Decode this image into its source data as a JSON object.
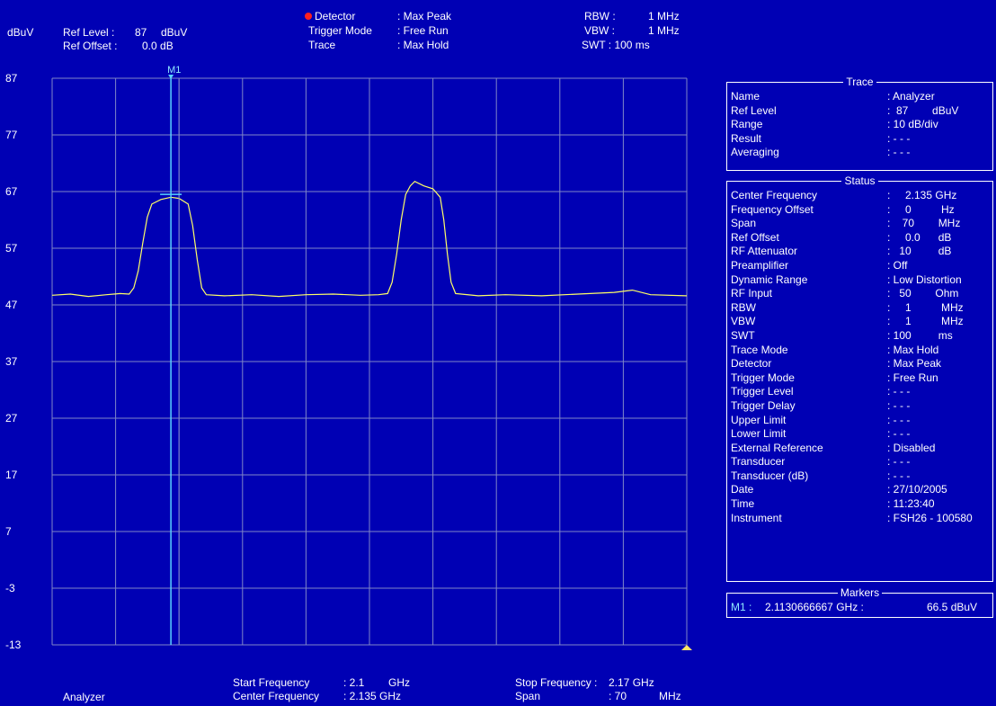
{
  "header": {
    "unit": "dBuV",
    "ref_level_label": "Ref Level :",
    "ref_level_value": "87",
    "ref_level_unit": "dBuV",
    "ref_offset_label": "Ref Offset :",
    "ref_offset_value": "0.0 dB",
    "detector_label": "Detector",
    "detector_value": ": Max Peak",
    "trigger_label": "Trigger Mode",
    "trigger_value": ": Free Run",
    "trace_label": "Trace",
    "trace_value": ": Max Hold",
    "rbw_label": "RBW :",
    "rbw_value": "1 MHz",
    "vbw_label": "VBW :",
    "vbw_value": "1 MHz",
    "swt_label": "SWT : 100 ms"
  },
  "marker_label": "M1",
  "footer": {
    "start_label": "Start Frequency",
    "start_value": ": 2.1",
    "start_unit": "GHz",
    "center_label": "Center Frequency",
    "center_value": ": 2.135 GHz",
    "stop_label": "Stop Frequency :",
    "stop_value": "2.17 GHz",
    "span_label": "Span",
    "span_value": ": 70",
    "span_unit": "MHz",
    "mode_label": "Analyzer"
  },
  "colors": {
    "background": "#0000b4",
    "grid": "#7f86c8",
    "trace": "#ffff66",
    "marker": "#5ad2ff",
    "marker_text": "#8fe8ff",
    "detector_dot": "#ff2020",
    "stop_triangle": "#ffe566"
  },
  "chart_data": {
    "type": "line",
    "yticks": [
      "87",
      "77",
      "67",
      "57",
      "47",
      "37",
      "27",
      "17",
      "7",
      "-3",
      "-13"
    ],
    "ylim": [
      -13,
      87
    ],
    "xlim": [
      2.1,
      2.17
    ],
    "x_unit": "GHz",
    "y_unit": "dBuV",
    "grid": true,
    "series": [
      {
        "points": [
          [
            2.1,
            48.7
          ],
          [
            2.102,
            48.9
          ],
          [
            2.104,
            48.5
          ],
          [
            2.106,
            48.8
          ],
          [
            2.1075,
            49.0
          ],
          [
            2.1085,
            48.9
          ],
          [
            2.109,
            50.0
          ],
          [
            2.1095,
            53.0
          ],
          [
            2.11,
            58.0
          ],
          [
            2.1105,
            62.5
          ],
          [
            2.111,
            64.8
          ],
          [
            2.112,
            65.6
          ],
          [
            2.1131,
            66.0
          ],
          [
            2.114,
            65.8
          ],
          [
            2.115,
            64.8
          ],
          [
            2.1155,
            61.0
          ],
          [
            2.116,
            55.0
          ],
          [
            2.1165,
            50.0
          ],
          [
            2.117,
            48.8
          ],
          [
            2.119,
            48.6
          ],
          [
            2.122,
            48.8
          ],
          [
            2.125,
            48.5
          ],
          [
            2.128,
            48.8
          ],
          [
            2.131,
            48.9
          ],
          [
            2.134,
            48.7
          ],
          [
            2.136,
            48.8
          ],
          [
            2.137,
            49.0
          ],
          [
            2.1375,
            51.0
          ],
          [
            2.138,
            56.0
          ],
          [
            2.1385,
            62.0
          ],
          [
            2.139,
            66.5
          ],
          [
            2.1395,
            68.0
          ],
          [
            2.14,
            68.8
          ],
          [
            2.141,
            68.0
          ],
          [
            2.142,
            67.5
          ],
          [
            2.1428,
            66.0
          ],
          [
            2.1432,
            62.0
          ],
          [
            2.1436,
            56.0
          ],
          [
            2.144,
            51.0
          ],
          [
            2.1445,
            49.0
          ],
          [
            2.147,
            48.6
          ],
          [
            2.15,
            48.8
          ],
          [
            2.154,
            48.6
          ],
          [
            2.158,
            48.9
          ],
          [
            2.162,
            49.2
          ],
          [
            2.164,
            49.6
          ],
          [
            2.166,
            48.8
          ],
          [
            2.17,
            48.6
          ]
        ]
      }
    ],
    "marker": {
      "name": "M1",
      "x": 2.1131,
      "y": 66.5
    }
  },
  "trace_panel": {
    "title": "Trace",
    "rows": [
      {
        "k": "Name",
        "v": ": Analyzer"
      },
      {
        "k": "Ref Level",
        "v": ":  87        dBuV"
      },
      {
        "k": "Range",
        "v": ": 10 dB/div"
      },
      {
        "k": "Result",
        "v": ": - - -"
      },
      {
        "k": "Averaging",
        "v": ": - - -"
      }
    ]
  },
  "status_panel": {
    "title": "Status",
    "rows": [
      {
        "k": "Center Frequency",
        "v": ":     2.135 GHz"
      },
      {
        "k": "Frequency Offset",
        "v": ":     0          Hz"
      },
      {
        "k": "Span",
        "v": ":    70        MHz"
      },
      {
        "k": "Ref Offset",
        "v": ":     0.0      dB"
      },
      {
        "k": "RF Attenuator",
        "v": ":   10         dB"
      },
      {
        "k": "Preamplifier",
        "v": ": Off"
      },
      {
        "k": "Dynamic Range",
        "v": ": Low Distortion"
      },
      {
        "k": "RF Input",
        "v": ":   50        Ohm"
      },
      {
        "k": "RBW",
        "v": ":     1          MHz"
      },
      {
        "k": "VBW",
        "v": ":     1          MHz"
      },
      {
        "k": "SWT",
        "v": ": 100         ms"
      },
      {
        "k": "Trace Mode",
        "v": ": Max Hold"
      },
      {
        "k": "Detector",
        "v": ": Max Peak"
      },
      {
        "k": "Trigger Mode",
        "v": ": Free Run"
      },
      {
        "k": "Trigger Level",
        "v": ": - - -"
      },
      {
        "k": "Trigger Delay",
        "v": ": - - -"
      },
      {
        "k": "Upper Limit",
        "v": ": - - -"
      },
      {
        "k": "Lower Limit",
        "v": ": - - -"
      },
      {
        "k": "External Reference",
        "v": ": Disabled"
      },
      {
        "k": "Transducer",
        "v": ": - - -"
      },
      {
        "k": "Transducer (dB)",
        "v": ": - - -"
      },
      {
        "k": "Date",
        "v": ": 27/10/2005"
      },
      {
        "k": "Time",
        "v": ": 11:23:40"
      },
      {
        "k": "Instrument",
        "v": ": FSH26 - 100580"
      }
    ]
  },
  "markers_panel": {
    "title": "Markers",
    "m_label": "M1 :",
    "m_freq": "2.1130666667 GHz :",
    "m_level": "66.5 dBuV"
  }
}
